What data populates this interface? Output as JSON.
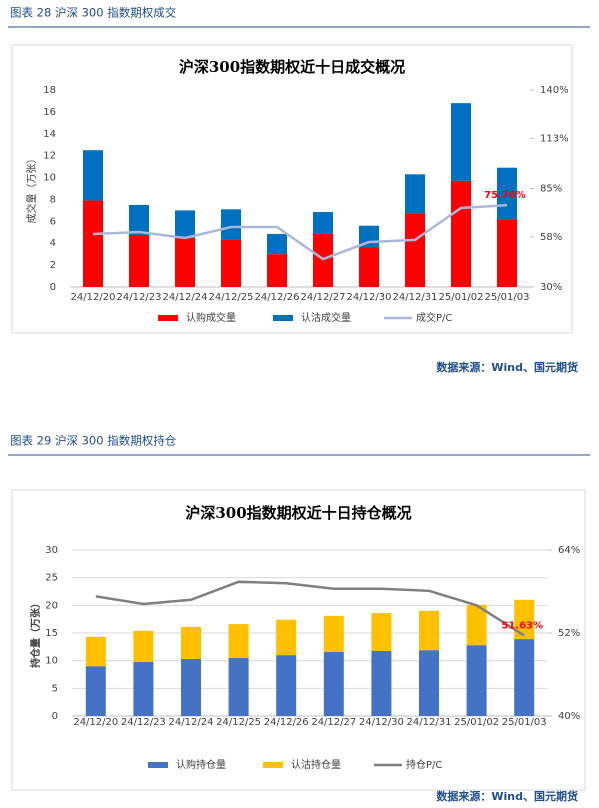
{
  "figures": [
    {
      "caption": "图表 28 沪深 300 指数期权成交",
      "source": "数据来源：Wind、国元期货"
    },
    {
      "caption": "图表 29 沪深 300 指数期权持仓",
      "source": "数据来源：Wind、国元期货"
    }
  ],
  "chart_data": [
    {
      "type": "bar",
      "title": "沪深300指数期权近十日成交概况",
      "y_label": "成交量（万张）",
      "categories": [
        "24/12/20",
        "24/12/23",
        "24/12/24",
        "24/12/25",
        "24/12/26",
        "24/12/27",
        "24/12/30",
        "24/12/31",
        "25/01/02",
        "25/01/03"
      ],
      "series": [
        {
          "name": "认购成交量",
          "color": "#ff0000",
          "values": [
            7.9,
            4.75,
            4.5,
            4.3,
            3.0,
            4.85,
            3.65,
            6.75,
            9.7,
            6.2
          ]
        },
        {
          "name": "认沽成交量",
          "color": "#0070c0",
          "values": [
            4.6,
            2.75,
            2.5,
            2.8,
            1.85,
            2.0,
            1.95,
            3.55,
            7.1,
            4.7
          ]
        },
        {
          "name": "成交P/C",
          "color": "#a9b8d9",
          "type": "line",
          "axis": "y2",
          "values": [
            59.6,
            60.7,
            57.4,
            63.5,
            63.5,
            45.6,
            55.1,
            56.3,
            74.1,
            75.7
          ],
          "value_labels": [
            null,
            null,
            null,
            null,
            null,
            null,
            null,
            null,
            null,
            "75.70%"
          ],
          "label_color": "#ff0000"
        }
      ],
      "ylim": [
        0,
        18
      ],
      "yticks": [
        0,
        2,
        4,
        6,
        8,
        10,
        12,
        14,
        16,
        18
      ],
      "y2lim": [
        30,
        140
      ],
      "y2ticks": [
        {
          "value": 30,
          "label": "30%"
        },
        {
          "value": 58,
          "label": "58%"
        },
        {
          "value": 85,
          "label": "85%"
        },
        {
          "value": 113,
          "label": "113%"
        },
        {
          "value": 140,
          "label": "140%"
        }
      ],
      "grid": false,
      "legend": "bottom"
    },
    {
      "type": "bar",
      "title": "沪深300指数期权近十日持仓概况",
      "y_label": "持仓量（万张）",
      "categories": [
        "24/12/20",
        "24/12/23",
        "24/12/24",
        "24/12/25",
        "24/12/26",
        "24/12/27",
        "24/12/30",
        "24/12/31",
        "25/01/02",
        "25/01/03"
      ],
      "series": [
        {
          "name": "认购持仓量",
          "color": "#4472c4",
          "values": [
            9.0,
            9.8,
            10.3,
            10.5,
            11.0,
            11.6,
            11.75,
            11.9,
            12.8,
            13.9
          ]
        },
        {
          "name": "认沽持仓量",
          "color": "#ffc000",
          "values": [
            5.3,
            5.6,
            5.8,
            6.1,
            6.4,
            6.5,
            6.85,
            7.1,
            7.3,
            7.1
          ]
        },
        {
          "name": "持仓P/C",
          "color": "#7f7f7f",
          "type": "line",
          "axis": "y2",
          "values": [
            57.3,
            56.2,
            56.8,
            59.4,
            59.2,
            58.4,
            58.4,
            58.1,
            56.0,
            51.63
          ],
          "value_labels": [
            null,
            null,
            null,
            null,
            null,
            null,
            null,
            null,
            null,
            "51.63%"
          ],
          "label_color": "#ff0000"
        }
      ],
      "ylim": [
        0,
        30
      ],
      "yticks": [
        0,
        5,
        10,
        15,
        20,
        25,
        30
      ],
      "y2lim": [
        40,
        64
      ],
      "y2ticks": [
        {
          "value": 40,
          "label": "40%"
        },
        {
          "value": 52,
          "label": "52%"
        },
        {
          "value": 64,
          "label": "64%"
        }
      ],
      "grid": true,
      "legend": "bottom"
    }
  ]
}
